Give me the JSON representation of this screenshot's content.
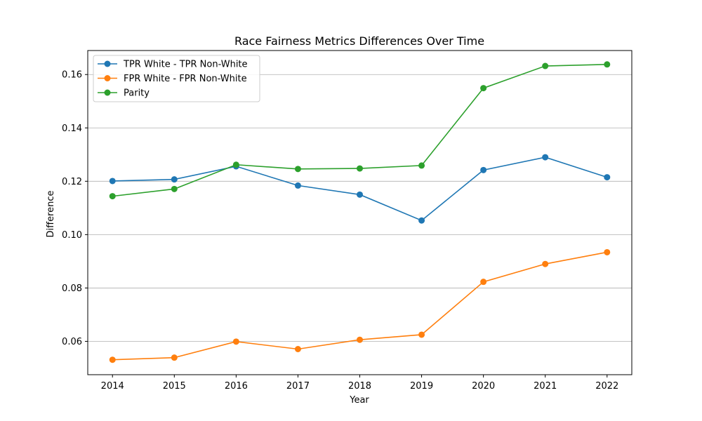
{
  "chart_data": {
    "type": "line",
    "title": "Race Fairness Metrics Differences Over Time",
    "xlabel": "Year",
    "ylabel": "Difference",
    "x": [
      2014,
      2015,
      2016,
      2017,
      2018,
      2019,
      2020,
      2021,
      2022
    ],
    "x_tick_labels": [
      "2014",
      "2015",
      "2016",
      "2017",
      "2018",
      "2019",
      "2020",
      "2021",
      "2022"
    ],
    "y_ticks": [
      0.06,
      0.08,
      0.1,
      0.12,
      0.14,
      0.16
    ],
    "y_tick_labels": [
      "0.06",
      "0.08",
      "0.10",
      "0.12",
      "0.14",
      "0.16"
    ],
    "ylim": [
      0.0475,
      0.169
    ],
    "xlim": [
      2013.6,
      2022.4
    ],
    "grid": "horizontal",
    "legend_position": "top-left",
    "series": [
      {
        "name": "TPR White - TPR Non-White",
        "color": "#1f77b4",
        "values": [
          0.1201,
          0.1207,
          0.1256,
          0.1184,
          0.115,
          0.1053,
          0.1242,
          0.129,
          0.1215
        ]
      },
      {
        "name": "FPR White - FPR Non-White",
        "color": "#ff7f0e",
        "values": [
          0.0531,
          0.0539,
          0.0599,
          0.0571,
          0.0606,
          0.0625,
          0.0823,
          0.089,
          0.0934
        ]
      },
      {
        "name": "Parity",
        "color": "#2ca02c",
        "values": [
          0.1144,
          0.1171,
          0.1262,
          0.1246,
          0.1248,
          0.1259,
          0.1549,
          0.1632,
          0.1638
        ]
      }
    ]
  }
}
